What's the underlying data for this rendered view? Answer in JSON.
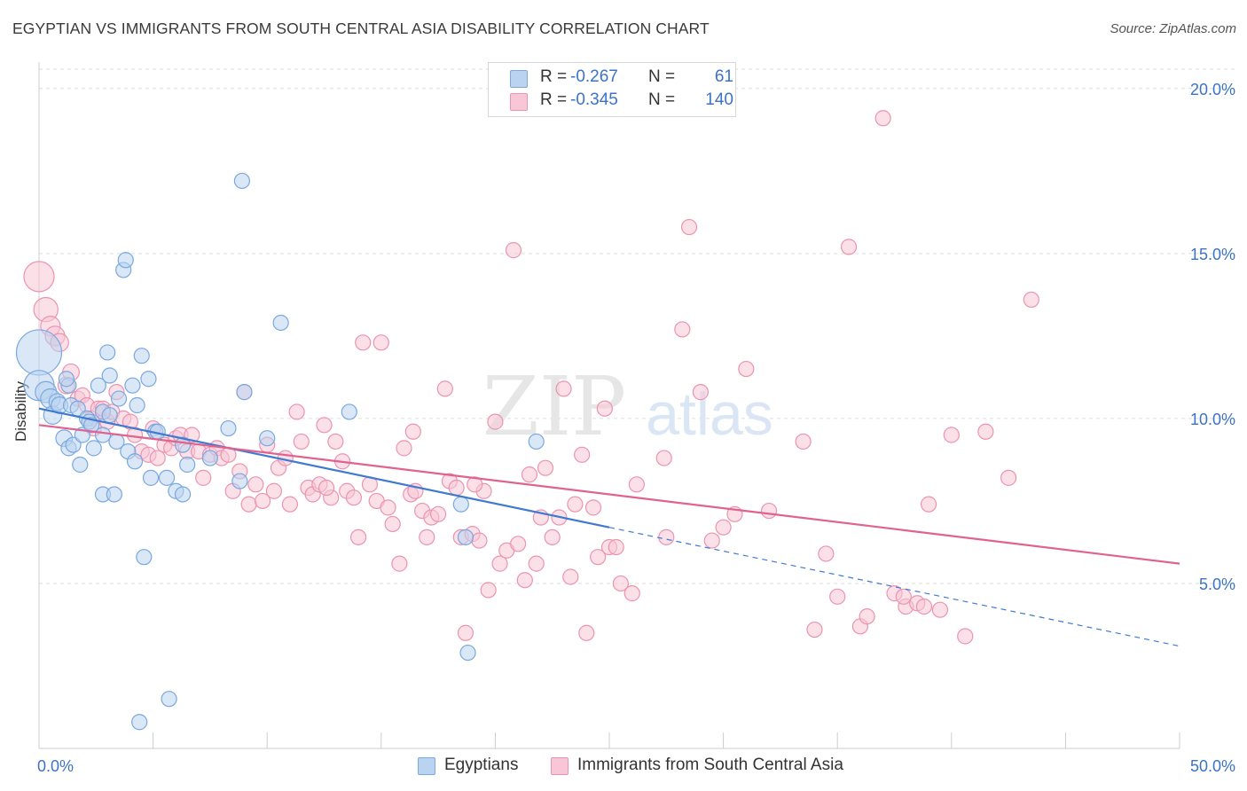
{
  "title": "EGYPTIAN VS IMMIGRANTS FROM SOUTH CENTRAL ASIA DISABILITY CORRELATION CHART",
  "source": "Source: ZipAtlas.com",
  "watermark": {
    "zip": "ZIP",
    "atlas": "atlas"
  },
  "legend_top": {
    "rows": [
      {
        "r_label": "R =",
        "r_value": "-0.267",
        "n_label": "N =",
        "n_value": "61"
      },
      {
        "r_label": "R =",
        "r_value": "-0.345",
        "n_label": "N =",
        "n_value": "140"
      }
    ]
  },
  "legend_bottom": {
    "items": [
      "Egyptians",
      "Immigrants from South Central Asia"
    ]
  },
  "chart_data": {
    "type": "scatter",
    "ylabel": "Disability",
    "xlabel": "",
    "xlim": [
      0,
      50
    ],
    "ylim": [
      0,
      20.8
    ],
    "x_tick_labels": [
      {
        "x": 0,
        "label": "0.0%"
      },
      {
        "x": 50,
        "label": "50.0%"
      }
    ],
    "x_minor_ticks": [
      5,
      10,
      15,
      20,
      25,
      30,
      35,
      40,
      45,
      50
    ],
    "y_ticks": [
      {
        "y": 5,
        "label": "5.0%"
      },
      {
        "y": 10,
        "label": "10.0%"
      },
      {
        "y": 15,
        "label": "15.0%"
      },
      {
        "y": 20,
        "label": "20.0%"
      }
    ],
    "grid": true,
    "colors": {
      "egyptians_fill": "#b9d3f1",
      "egyptians_stroke": "#7aa8df",
      "egyptians_line": "#3f7ad0",
      "immigrants_fill": "#f8c6d6",
      "immigrants_stroke": "#ec93b1",
      "immigrants_line": "#e0628f",
      "axis_value_text": "#3b73c7",
      "grid": "#dedede"
    },
    "series": [
      {
        "name": "Egyptians",
        "trend": {
          "x0": 0,
          "y0": 10.3,
          "x1": 25,
          "y1": 6.7,
          "x_dashed_end": 50,
          "y_dashed_end": 3.1
        },
        "points": [
          [
            0,
            12.0,
            3
          ],
          [
            0,
            11.0,
            2
          ],
          [
            0.3,
            10.8,
            1.4
          ],
          [
            0.5,
            10.6,
            1.3
          ],
          [
            0.6,
            10.1,
            1.2
          ],
          [
            0.8,
            10.5,
            1.1
          ],
          [
            0.9,
            10.4,
            1.1
          ],
          [
            1.1,
            9.4,
            1.1
          ],
          [
            1.3,
            11.0,
            1
          ],
          [
            1.4,
            10.4,
            1
          ],
          [
            1.3,
            9.1,
            1
          ],
          [
            1.5,
            9.2,
            1
          ],
          [
            1.7,
            10.3,
            1
          ],
          [
            1.8,
            8.6,
            1
          ],
          [
            1.9,
            9.5,
            1
          ],
          [
            2.1,
            10.0,
            1
          ],
          [
            2.2,
            9.9,
            1
          ],
          [
            2.4,
            9.1,
            1
          ],
          [
            2.6,
            11.0,
            1
          ],
          [
            2.8,
            10.2,
            1
          ],
          [
            2.8,
            7.7,
            1
          ],
          [
            2.8,
            9.5,
            1
          ],
          [
            3.0,
            12.0,
            1
          ],
          [
            3.1,
            11.3,
            1
          ],
          [
            3.1,
            10.1,
            1
          ],
          [
            3.3,
            7.7,
            1
          ],
          [
            3.4,
            9.3,
            1
          ],
          [
            3.5,
            10.6,
            1
          ],
          [
            3.7,
            14.5,
            1
          ],
          [
            3.8,
            14.8,
            1
          ],
          [
            3.9,
            9.0,
            1
          ],
          [
            4.1,
            11.0,
            1
          ],
          [
            4.2,
            8.7,
            1
          ],
          [
            4.3,
            10.4,
            1
          ],
          [
            4.5,
            11.9,
            1
          ],
          [
            4.6,
            5.8,
            1
          ],
          [
            4.8,
            11.2,
            1
          ],
          [
            4.9,
            8.2,
            1
          ],
          [
            5.1,
            9.6,
            1
          ],
          [
            5.2,
            9.6,
            1
          ],
          [
            5.6,
            8.2,
            1
          ],
          [
            5.7,
            1.5,
            1
          ],
          [
            6.0,
            7.8,
            1
          ],
          [
            6.3,
            7.7,
            1
          ],
          [
            6.5,
            8.6,
            1
          ],
          [
            6.3,
            9.2,
            1
          ],
          [
            7.5,
            8.8,
            1
          ],
          [
            8.3,
            9.7,
            1
          ],
          [
            8.8,
            8.1,
            1
          ],
          [
            8.9,
            17.2,
            1
          ],
          [
            9.0,
            10.8,
            1
          ],
          [
            10.0,
            9.4,
            1
          ],
          [
            10.6,
            12.9,
            1
          ],
          [
            13.6,
            10.2,
            1
          ],
          [
            18.5,
            7.4,
            1
          ],
          [
            18.7,
            6.4,
            1
          ],
          [
            18.8,
            2.9,
            1
          ],
          [
            21.8,
            9.3,
            1
          ],
          [
            4.4,
            0.8,
            1
          ],
          [
            1.2,
            11.2,
            1
          ],
          [
            2.3,
            9.8,
            1
          ]
        ]
      },
      {
        "name": "Immigrants from South Central Asia",
        "trend": {
          "x0": 0,
          "y0": 9.8,
          "x1": 50,
          "y1": 5.6
        },
        "points": [
          [
            0,
            14.3,
            2
          ],
          [
            0.3,
            13.3,
            1.6
          ],
          [
            0.5,
            12.8,
            1.3
          ],
          [
            0.7,
            12.5,
            1.3
          ],
          [
            0.9,
            12.3,
            1.2
          ],
          [
            1.2,
            11.0,
            1.1
          ],
          [
            1.4,
            11.4,
            1.1
          ],
          [
            1.7,
            10.6,
            1
          ],
          [
            1.9,
            10.7,
            1
          ],
          [
            2.1,
            10.4,
            1
          ],
          [
            2.3,
            10.0,
            1
          ],
          [
            2.4,
            9.7,
            1
          ],
          [
            2.6,
            10.3,
            1
          ],
          [
            2.8,
            10.3,
            1
          ],
          [
            3.0,
            9.9,
            1
          ],
          [
            3.2,
            10.2,
            1
          ],
          [
            3.4,
            10.8,
            1
          ],
          [
            3.7,
            10.0,
            1
          ],
          [
            4.0,
            9.9,
            1
          ],
          [
            4.2,
            9.5,
            1
          ],
          [
            4.5,
            9.0,
            1
          ],
          [
            4.8,
            8.9,
            1
          ],
          [
            5.0,
            9.7,
            1
          ],
          [
            5.2,
            8.8,
            1
          ],
          [
            5.5,
            9.2,
            1
          ],
          [
            5.8,
            9.1,
            1
          ],
          [
            6.0,
            9.4,
            1
          ],
          [
            6.2,
            9.5,
            1
          ],
          [
            6.5,
            9.0,
            1
          ],
          [
            6.7,
            9.5,
            1
          ],
          [
            7.0,
            9.0,
            1
          ],
          [
            7.2,
            8.2,
            1
          ],
          [
            7.5,
            8.9,
            1
          ],
          [
            7.8,
            9.1,
            1
          ],
          [
            8.0,
            8.8,
            1
          ],
          [
            8.3,
            8.9,
            1
          ],
          [
            8.5,
            7.8,
            1
          ],
          [
            8.8,
            8.4,
            1
          ],
          [
            9.0,
            10.8,
            1
          ],
          [
            9.2,
            7.4,
            1
          ],
          [
            9.5,
            8.0,
            1
          ],
          [
            9.8,
            7.5,
            1
          ],
          [
            10.0,
            9.2,
            1
          ],
          [
            10.3,
            7.8,
            1
          ],
          [
            10.5,
            8.5,
            1
          ],
          [
            10.8,
            8.8,
            1
          ],
          [
            11.0,
            7.4,
            1
          ],
          [
            11.3,
            10.2,
            1
          ],
          [
            11.5,
            9.3,
            1
          ],
          [
            11.8,
            7.9,
            1
          ],
          [
            12.0,
            7.7,
            1
          ],
          [
            12.3,
            8.0,
            1
          ],
          [
            12.5,
            9.8,
            1
          ],
          [
            12.8,
            7.6,
            1
          ],
          [
            13.0,
            9.3,
            1
          ],
          [
            13.3,
            8.7,
            1
          ],
          [
            13.5,
            7.8,
            1
          ],
          [
            13.8,
            7.6,
            1
          ],
          [
            14.0,
            6.4,
            1
          ],
          [
            14.2,
            12.3,
            1
          ],
          [
            14.5,
            8.0,
            1
          ],
          [
            14.8,
            7.5,
            1
          ],
          [
            15.0,
            12.3,
            1
          ],
          [
            15.3,
            7.3,
            1
          ],
          [
            15.5,
            6.8,
            1
          ],
          [
            15.8,
            5.6,
            1
          ],
          [
            16.0,
            9.1,
            1
          ],
          [
            16.3,
            7.7,
            1
          ],
          [
            16.5,
            7.8,
            1
          ],
          [
            16.8,
            7.2,
            1
          ],
          [
            17.0,
            6.4,
            1
          ],
          [
            17.2,
            7.0,
            1
          ],
          [
            17.5,
            7.1,
            1
          ],
          [
            17.8,
            10.9,
            1
          ],
          [
            18.0,
            8.1,
            1
          ],
          [
            18.3,
            7.9,
            1
          ],
          [
            18.5,
            6.4,
            1
          ],
          [
            18.7,
            3.5,
            1
          ],
          [
            19.0,
            6.5,
            1
          ],
          [
            19.3,
            6.3,
            1
          ],
          [
            19.5,
            7.8,
            1
          ],
          [
            19.7,
            4.8,
            1
          ],
          [
            20.0,
            9.9,
            1
          ],
          [
            20.2,
            5.6,
            1
          ],
          [
            20.5,
            6.0,
            1
          ],
          [
            20.8,
            15.1,
            1
          ],
          [
            21.0,
            6.2,
            1
          ],
          [
            21.3,
            5.1,
            1
          ],
          [
            21.5,
            8.3,
            1
          ],
          [
            21.8,
            5.6,
            1
          ],
          [
            22.0,
            7.0,
            1
          ],
          [
            22.2,
            8.5,
            1
          ],
          [
            22.5,
            6.4,
            1
          ],
          [
            22.8,
            7.0,
            1
          ],
          [
            23.0,
            10.9,
            1
          ],
          [
            23.3,
            5.2,
            1
          ],
          [
            23.5,
            7.4,
            1
          ],
          [
            23.8,
            8.9,
            1
          ],
          [
            24.0,
            3.5,
            1
          ],
          [
            24.3,
            7.3,
            1
          ],
          [
            24.5,
            5.8,
            1
          ],
          [
            24.8,
            10.3,
            1
          ],
          [
            25.0,
            6.1,
            1
          ],
          [
            25.3,
            6.1,
            1
          ],
          [
            25.5,
            5.0,
            1
          ],
          [
            26.0,
            4.7,
            1
          ],
          [
            26.2,
            8.0,
            1
          ],
          [
            27.5,
            6.4,
            1
          ],
          [
            28.2,
            12.7,
            1
          ],
          [
            28.5,
            15.8,
            1
          ],
          [
            29.0,
            10.8,
            1
          ],
          [
            29.5,
            6.3,
            1
          ],
          [
            30.0,
            6.7,
            1
          ],
          [
            30.5,
            7.1,
            1
          ],
          [
            31.0,
            11.5,
            1
          ],
          [
            32.0,
            7.2,
            1
          ],
          [
            33.5,
            9.3,
            1
          ],
          [
            34.0,
            3.6,
            1
          ],
          [
            34.5,
            5.9,
            1
          ],
          [
            35.0,
            4.6,
            1
          ],
          [
            35.5,
            15.2,
            1
          ],
          [
            36.0,
            3.7,
            1
          ],
          [
            36.3,
            4.0,
            1
          ],
          [
            37.0,
            19.1,
            1
          ],
          [
            37.5,
            4.7,
            1
          ],
          [
            38.0,
            4.3,
            1
          ],
          [
            38.5,
            4.4,
            1
          ],
          [
            38.8,
            4.3,
            1
          ],
          [
            39.0,
            7.4,
            1
          ],
          [
            40.0,
            9.5,
            1
          ],
          [
            40.6,
            3.4,
            1
          ],
          [
            41.5,
            9.6,
            1
          ],
          [
            42.5,
            8.2,
            1
          ],
          [
            43.5,
            13.6,
            1
          ],
          [
            12.6,
            7.9,
            1
          ],
          [
            16.4,
            9.6,
            1
          ],
          [
            19.1,
            8.0,
            1
          ],
          [
            27.4,
            8.8,
            1
          ],
          [
            37.9,
            4.6,
            1
          ],
          [
            39.5,
            4.2,
            1
          ]
        ]
      }
    ]
  }
}
